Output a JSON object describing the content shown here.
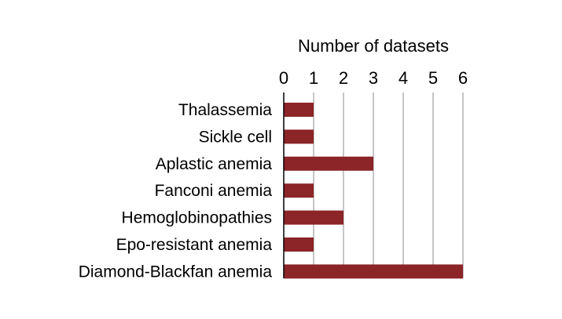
{
  "chart_data": {
    "type": "bar",
    "orientation": "horizontal",
    "xlabel": "Number of datasets",
    "x_axis_position": "top",
    "xlim": [
      0,
      6
    ],
    "xticks": [
      "0",
      "1",
      "2",
      "3",
      "4",
      "5",
      "6"
    ],
    "grid": true,
    "categories": [
      "Thalassemia",
      "Sickle cell",
      "Aplastic anemia",
      "Fanconi anemia",
      "Hemoglobinopathies",
      "Epo-resistant anemia",
      "Diamond-Blackfan anemia"
    ],
    "values": [
      1,
      1,
      3,
      1,
      2,
      1,
      6
    ],
    "colors": {
      "bar": "#8b2528",
      "grid": "#8c8c8c",
      "axis": "#000000"
    }
  }
}
